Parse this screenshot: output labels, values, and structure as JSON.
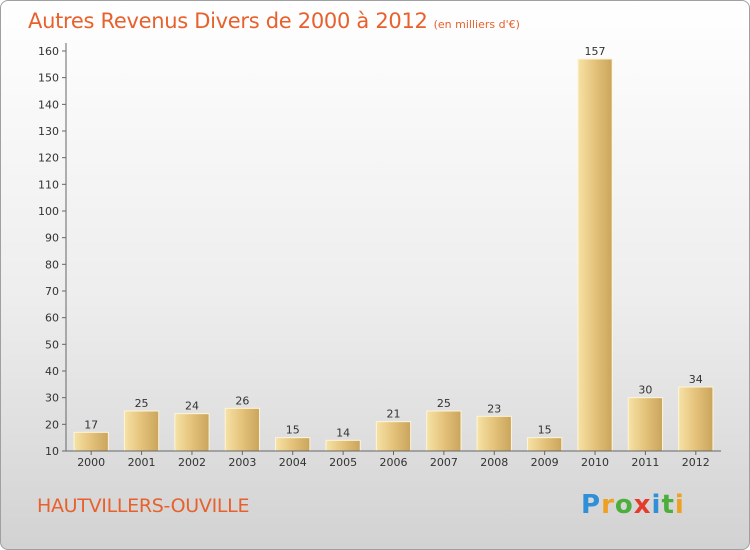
{
  "chart_data": {
    "type": "bar",
    "title": "Autres Revenus Divers de 2000 à 2012",
    "subtitle": "(en milliers d'€)",
    "categories": [
      "2000",
      "2001",
      "2002",
      "2003",
      "2004",
      "2005",
      "2006",
      "2007",
      "2008",
      "2009",
      "2010",
      "2011",
      "2012"
    ],
    "values": [
      17,
      25,
      24,
      26,
      15,
      14,
      21,
      25,
      23,
      15,
      157,
      30,
      34
    ],
    "ylim": [
      10,
      160
    ],
    "yticks": [
      10,
      20,
      30,
      40,
      50,
      60,
      70,
      80,
      90,
      100,
      110,
      120,
      130,
      140,
      150,
      160
    ],
    "grid": false,
    "bar_color": "#e8c87a"
  },
  "footer": {
    "commune": "HAUTVILLERS-OUVILLE",
    "logo_letters": [
      {
        "ch": "P",
        "color": "#2f8fd8"
      },
      {
        "ch": "r",
        "color": "#f0a020"
      },
      {
        "ch": "o",
        "color": "#4cae3c"
      },
      {
        "ch": "x",
        "color": "#e53b2c"
      },
      {
        "ch": "i",
        "color": "#2f8fd8"
      },
      {
        "ch": "t",
        "color": "#4cae3c"
      },
      {
        "ch": "i",
        "color": "#f0a020"
      }
    ]
  }
}
